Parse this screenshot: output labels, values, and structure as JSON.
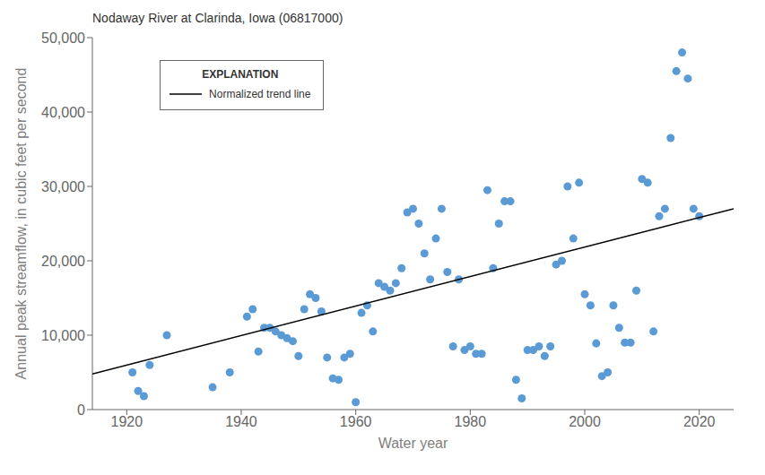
{
  "chart_data": {
    "type": "scatter",
    "title": "Nodaway River at Clarinda, Iowa (06817000)",
    "x_label": "Water year",
    "y_label": "Annual peak streamflow, in cubic feet per second",
    "xlim": [
      1914,
      2026
    ],
    "ylim": [
      0,
      50000
    ],
    "xticks": [
      1920,
      1940,
      1960,
      1980,
      2000,
      2020
    ],
    "yticks": [
      0,
      {
        "value": 10000,
        "label": "10,000"
      },
      {
        "value": 20000,
        "label": "20,000"
      },
      {
        "value": 30000,
        "label": "30,000"
      },
      {
        "value": 40000,
        "label": "40,000"
      },
      {
        "value": 50000,
        "label": "50,000"
      }
    ],
    "grid": false,
    "color": "#5b9bd5",
    "x": [
      1921,
      1922,
      1923,
      1924,
      1927,
      1935,
      1938,
      1941,
      1942,
      1943,
      1944,
      1945,
      1946,
      1947,
      1948,
      1949,
      1950,
      1951,
      1952,
      1953,
      1954,
      1955,
      1956,
      1957,
      1958,
      1959,
      1960,
      1961,
      1962,
      1963,
      1964,
      1965,
      1966,
      1967,
      1968,
      1969,
      1970,
      1971,
      1972,
      1973,
      1974,
      1975,
      1976,
      1977,
      1978,
      1979,
      1980,
      1981,
      1982,
      1983,
      1984,
      1985,
      1986,
      1987,
      1988,
      1989,
      1990,
      1991,
      1992,
      1993,
      1994,
      1995,
      1996,
      1997,
      1998,
      1999,
      2000,
      2001,
      2002,
      2003,
      2004,
      2005,
      2006,
      2007,
      2008,
      2009,
      2010,
      2011,
      2012,
      2013,
      2014,
      2015,
      2016,
      2017,
      2018,
      2019,
      2020
    ],
    "values": [
      5000,
      2500,
      1800,
      6000,
      10000,
      3000,
      5000,
      12500,
      13500,
      7800,
      11000,
      11000,
      10500,
      10000,
      9600,
      9200,
      7200,
      13500,
      15500,
      15000,
      13200,
      7000,
      4200,
      4000,
      7000,
      7500,
      1000,
      13000,
      14000,
      10500,
      17000,
      16500,
      16000,
      17000,
      19000,
      26500,
      27000,
      25000,
      21000,
      17500,
      23000,
      27000,
      18500,
      8500,
      17500,
      8000,
      8500,
      7500,
      7500,
      29500,
      19000,
      25000,
      28000,
      28000,
      4000,
      1500,
      8000,
      8000,
      8500,
      7200,
      8500,
      19500,
      20000,
      30000,
      23000,
      30500,
      15500,
      14000,
      8900,
      4500,
      5000,
      14000,
      11000,
      9000,
      9000,
      16000,
      31000,
      30500,
      10500,
      26000,
      27000,
      36500,
      45500,
      48000,
      44500,
      27000,
      26000
    ],
    "trend_line": {
      "name": "Normalized trend line",
      "x": [
        1914,
        2026
      ],
      "values": [
        4800,
        27000
      ],
      "color": "#000000"
    },
    "legend_title": "EXPLANATION"
  }
}
